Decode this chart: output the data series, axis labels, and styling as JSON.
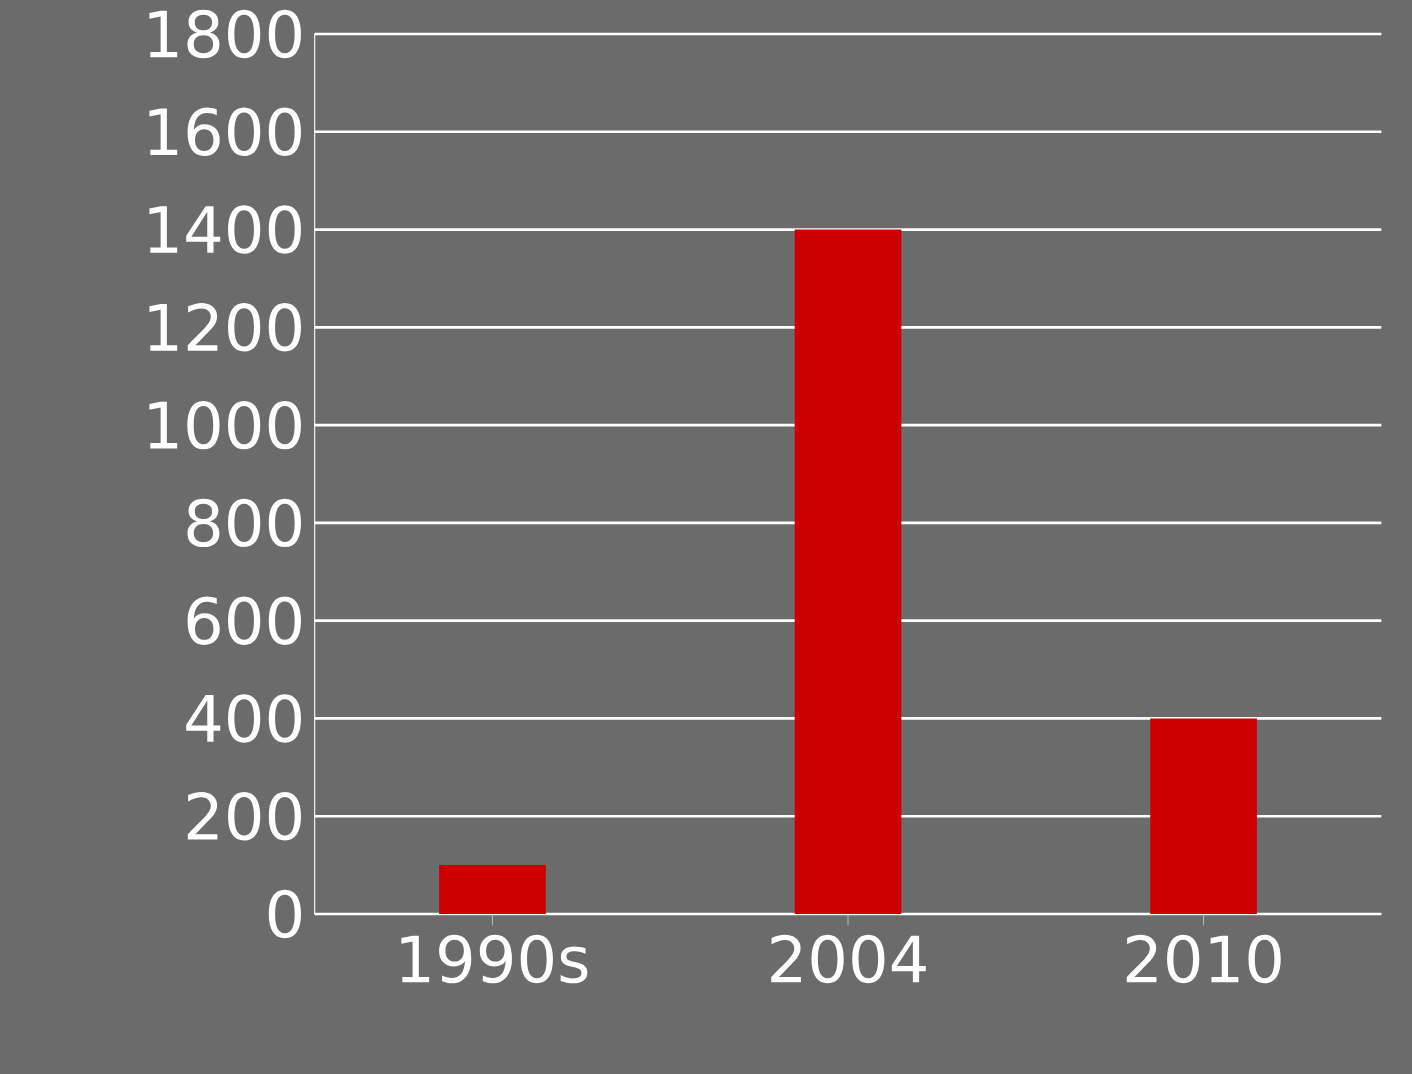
{
  "chart_data": {
    "type": "bar",
    "categories": [
      "1990s",
      "2004",
      "2010"
    ],
    "values": [
      100,
      1400,
      400
    ],
    "color": "#cc0000",
    "ylim": [
      0,
      1800
    ],
    "yticks": [
      0,
      200,
      400,
      600,
      800,
      1000,
      1200,
      1400,
      1600,
      1800
    ],
    "grid": "y"
  }
}
